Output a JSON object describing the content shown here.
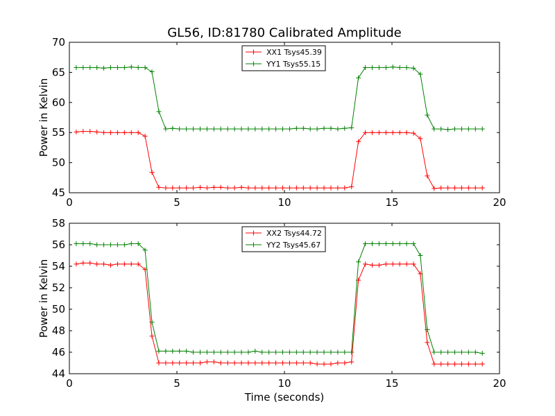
{
  "figure": {
    "title": "GL56, ID:81780 Calibrated Amplitude"
  },
  "chart_data": [
    {
      "type": "line",
      "title": "GL56, ID:81780 Calibrated Amplitude",
      "xlabel": "",
      "ylabel": "Power in Kelvin",
      "xlim": [
        0,
        20
      ],
      "ylim": [
        45,
        70
      ],
      "xticks": [
        "0",
        "5",
        "10",
        "15",
        "20"
      ],
      "yticks": [
        "45",
        "50",
        "55",
        "60",
        "65",
        "70"
      ],
      "grid": false,
      "legend_position": "top-center",
      "x": [
        0.32,
        0.64,
        0.96,
        1.28,
        1.6,
        1.92,
        2.24,
        2.56,
        2.88,
        3.2,
        3.52,
        3.84,
        4.16,
        4.48,
        4.8,
        5.12,
        5.44,
        5.76,
        6.08,
        6.4,
        6.72,
        7.04,
        7.36,
        7.68,
        8.0,
        8.32,
        8.64,
        8.96,
        9.28,
        9.6,
        9.92,
        10.24,
        10.56,
        10.88,
        11.2,
        11.52,
        11.84,
        12.16,
        12.48,
        12.8,
        13.12,
        13.44,
        13.76,
        14.08,
        14.4,
        14.72,
        15.04,
        15.36,
        15.68,
        16.0,
        16.32,
        16.64,
        16.96,
        17.28,
        17.6,
        17.92,
        18.24,
        18.56,
        18.88,
        19.2
      ],
      "series": [
        {
          "name": "XX1 Tsys45.39",
          "color": "#ff0000",
          "values": [
            55.1,
            55.2,
            55.2,
            55.1,
            55.0,
            55.0,
            55.0,
            55.0,
            55.0,
            55.0,
            54.4,
            48.4,
            45.9,
            45.8,
            45.8,
            45.8,
            45.8,
            45.8,
            45.9,
            45.8,
            45.9,
            45.9,
            45.8,
            45.8,
            45.9,
            45.8,
            45.8,
            45.8,
            45.8,
            45.8,
            45.8,
            45.8,
            45.8,
            45.8,
            45.8,
            45.8,
            45.8,
            45.8,
            45.8,
            45.8,
            46.0,
            53.5,
            55.0,
            55.0,
            55.0,
            55.0,
            55.0,
            55.0,
            55.0,
            54.9,
            54.0,
            47.8,
            45.7,
            45.8,
            45.8,
            45.8,
            45.8,
            45.8,
            45.8,
            45.8
          ]
        },
        {
          "name": "YY1 Tsys55.15",
          "color": "#008000",
          "values": [
            65.8,
            65.8,
            65.8,
            65.8,
            65.7,
            65.8,
            65.8,
            65.8,
            65.9,
            65.8,
            65.8,
            65.1,
            58.5,
            55.6,
            55.7,
            55.6,
            55.6,
            55.6,
            55.6,
            55.6,
            55.6,
            55.6,
            55.6,
            55.6,
            55.6,
            55.6,
            55.6,
            55.6,
            55.6,
            55.6,
            55.6,
            55.6,
            55.7,
            55.7,
            55.6,
            55.6,
            55.7,
            55.7,
            55.6,
            55.7,
            55.8,
            64.1,
            65.8,
            65.8,
            65.8,
            65.8,
            65.9,
            65.8,
            65.8,
            65.7,
            64.7,
            57.9,
            55.6,
            55.6,
            55.5,
            55.6,
            55.6,
            55.6,
            55.6,
            55.6
          ]
        }
      ]
    },
    {
      "type": "line",
      "title": "",
      "xlabel": "Time (seconds)",
      "ylabel": "Power in Kelvin",
      "xlim": [
        0,
        20
      ],
      "ylim": [
        44,
        58
      ],
      "xticks": [
        "0",
        "5",
        "10",
        "15",
        "20"
      ],
      "yticks": [
        "44",
        "46",
        "48",
        "50",
        "52",
        "54",
        "56",
        "58"
      ],
      "grid": false,
      "legend_position": "top-center",
      "x": [
        0.32,
        0.64,
        0.96,
        1.28,
        1.6,
        1.92,
        2.24,
        2.56,
        2.88,
        3.2,
        3.52,
        3.84,
        4.16,
        4.48,
        4.8,
        5.12,
        5.44,
        5.76,
        6.08,
        6.4,
        6.72,
        7.04,
        7.36,
        7.68,
        8.0,
        8.32,
        8.64,
        8.96,
        9.28,
        9.6,
        9.92,
        10.24,
        10.56,
        10.88,
        11.2,
        11.52,
        11.84,
        12.16,
        12.48,
        12.8,
        13.12,
        13.44,
        13.76,
        14.08,
        14.4,
        14.72,
        15.04,
        15.36,
        15.68,
        16.0,
        16.32,
        16.64,
        16.96,
        17.28,
        17.6,
        17.92,
        18.24,
        18.56,
        18.88,
        19.2
      ],
      "series": [
        {
          "name": "XX2 Tsys44.72",
          "color": "#ff0000",
          "values": [
            54.2,
            54.3,
            54.3,
            54.2,
            54.2,
            54.1,
            54.2,
            54.2,
            54.2,
            54.2,
            53.7,
            47.5,
            45.0,
            45.0,
            45.0,
            45.0,
            45.0,
            45.0,
            45.0,
            45.1,
            45.1,
            45.0,
            45.0,
            45.0,
            45.0,
            45.0,
            45.0,
            45.0,
            45.0,
            45.0,
            45.0,
            45.0,
            45.0,
            45.0,
            45.0,
            44.9,
            44.9,
            44.9,
            45.0,
            45.0,
            45.1,
            52.7,
            54.2,
            54.1,
            54.1,
            54.2,
            54.2,
            54.2,
            54.2,
            54.2,
            53.3,
            46.9,
            44.9,
            44.9,
            44.9,
            44.9,
            44.9,
            44.9,
            44.9,
            44.9
          ]
        },
        {
          "name": "YY2 Tsys45.67",
          "color": "#008000",
          "values": [
            56.1,
            56.1,
            56.1,
            56.0,
            56.0,
            56.0,
            56.0,
            56.0,
            56.1,
            56.1,
            55.5,
            48.8,
            46.1,
            46.1,
            46.1,
            46.1,
            46.1,
            46.0,
            46.0,
            46.0,
            46.0,
            46.0,
            46.0,
            46.0,
            46.0,
            46.0,
            46.1,
            46.0,
            46.0,
            46.0,
            46.0,
            46.0,
            46.0,
            46.0,
            46.0,
            46.0,
            46.0,
            46.0,
            46.0,
            46.0,
            46.0,
            54.4,
            56.1,
            56.1,
            56.1,
            56.1,
            56.1,
            56.1,
            56.1,
            56.1,
            55.0,
            48.1,
            46.0,
            46.0,
            46.0,
            46.0,
            46.0,
            46.0,
            46.0,
            45.9
          ]
        }
      ]
    }
  ]
}
